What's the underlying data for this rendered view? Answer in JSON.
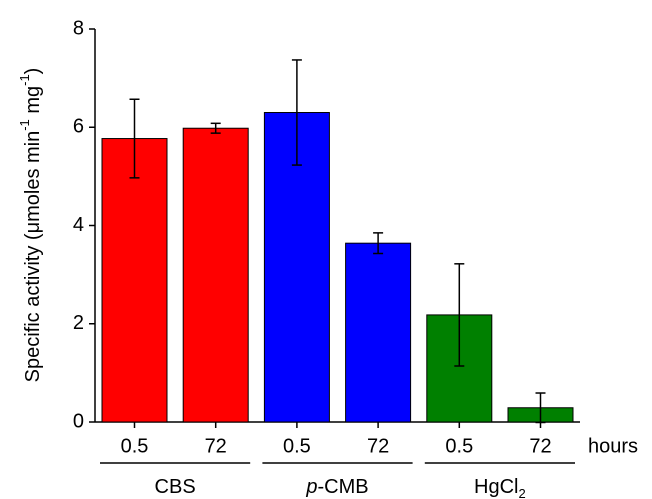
{
  "chart_data": {
    "type": "bar",
    "ylabel": {
      "text": "Specific activity (μmoles min",
      "sup1": "-1",
      "mid": " mg",
      "sup2": "-1",
      "end": ")"
    },
    "categories": [
      "0.5",
      "72",
      "0.5",
      "72",
      "0.5",
      "72"
    ],
    "values": [
      5.77,
      5.98,
      6.3,
      3.64,
      2.18,
      0.29
    ],
    "errors": [
      0.8,
      0.1,
      1.07,
      0.21,
      1.04,
      0.3
    ],
    "colors": [
      "#ff0000",
      "#ff0000",
      "#0000ff",
      "#0000ff",
      "#008000",
      "#008000"
    ],
    "groups": [
      {
        "text": "CBS"
      },
      {
        "italic": "p",
        "text": "-CMB"
      },
      {
        "text": "HgCl",
        "sub": "2"
      }
    ],
    "xlabel": "hours",
    "ylim": [
      0,
      8
    ],
    "yticks": [
      0,
      2,
      4,
      6,
      8
    ]
  }
}
